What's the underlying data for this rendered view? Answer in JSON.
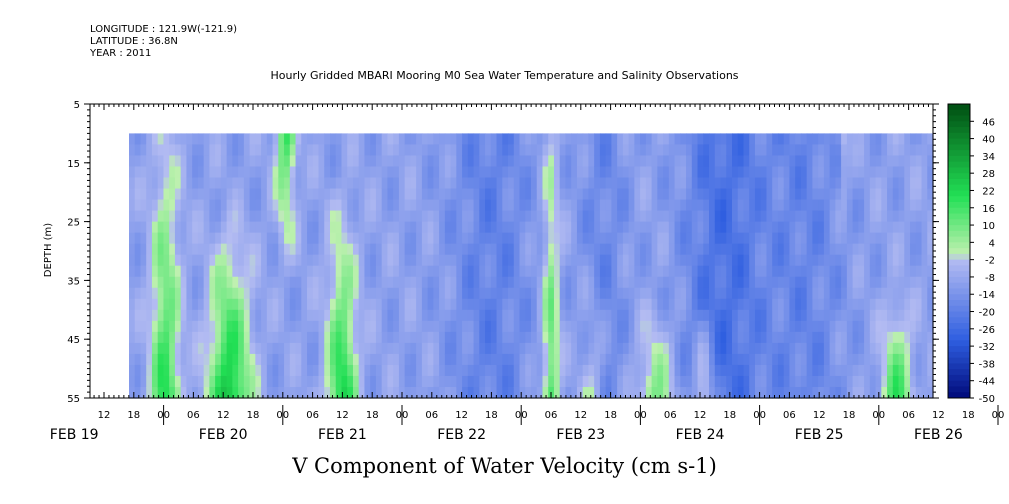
{
  "header": {
    "longitude": "LONGITUDE : 121.9W(-121.9)",
    "latitude": "LATITUDE : 36.8N",
    "year": "YEAR : 2011"
  },
  "chart_data": {
    "type": "heatmap",
    "title": "Hourly Gridded MBARI Mooring M0 Sea Water Temperature and Salinity Observations",
    "xlabel": "V Component of Water Velocity (cm s-1)",
    "ylabel": "DEPTH (m)",
    "y_ticks": [
      "5",
      "15",
      "25",
      "35",
      "45",
      "55"
    ],
    "ylim": [
      55,
      5
    ],
    "data_depth_range": [
      10,
      55
    ],
    "x_hour_ticks": [
      "12",
      "18",
      "00",
      "06",
      "12",
      "18",
      "00",
      "06",
      "12",
      "18",
      "00",
      "06",
      "12",
      "18",
      "00",
      "06",
      "12",
      "18",
      "00",
      "06",
      "12",
      "18",
      "00",
      "06",
      "12",
      "18",
      "00",
      "06",
      "12",
      "18",
      "00",
      "06"
    ],
    "x_day_labels": [
      "FEB 19",
      "FEB 20",
      "FEB 21",
      "FEB 22",
      "FEB 23",
      "FEB 24",
      "FEB 25",
      "FEB 26"
    ],
    "colorbar": {
      "labels": [
        "46",
        "40",
        "34",
        "28",
        "22",
        "16",
        "10",
        "4",
        "-2",
        "-8",
        "-14",
        "-20",
        "-26",
        "-32",
        "-38",
        "-44",
        "-50"
      ],
      "range": [
        -50,
        52
      ],
      "step": 2
    },
    "colors": {
      "strong_negative": "#000a7a",
      "negative": "#2e5ee0",
      "near_zero_negative": "#b4bcf2",
      "near_zero_positive": "#bff0b0",
      "positive": "#22e055",
      "strong_positive": "#004d12"
    }
  }
}
